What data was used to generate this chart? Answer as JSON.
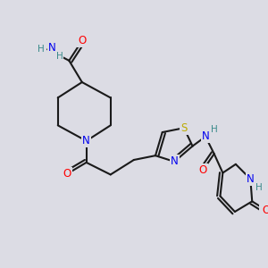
{
  "bg_color": "#dcdce4",
  "bond_color": "#1a1a1a",
  "bond_width": 1.5,
  "atom_colors": {
    "O": "#ff0000",
    "N": "#0000ee",
    "S": "#bbaa00",
    "H": "#3a8a8a",
    "C": "#1a1a1a"
  },
  "font_size_atom": 8.5,
  "font_size_H": 7.5
}
